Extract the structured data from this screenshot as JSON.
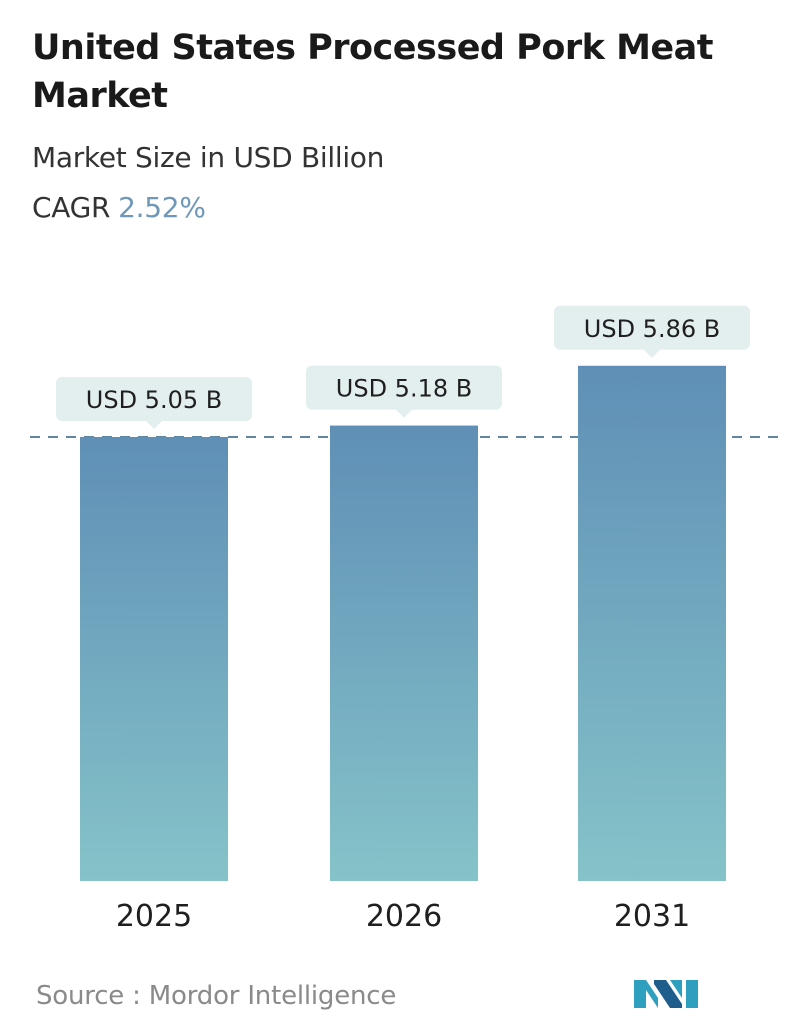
{
  "header": {
    "title": "United States Processed Pork Meat Market",
    "subtitle": "Market Size in USD Billion",
    "cagr_label": "CAGR",
    "cagr_value": "2.52%"
  },
  "chart_data": {
    "type": "bar",
    "title": "United States Processed Pork Meat Market",
    "subtitle": "Market Size in USD Billion",
    "categories": [
      "2025",
      "2026",
      "2031"
    ],
    "values": [
      5.05,
      5.18,
      5.86
    ],
    "value_labels": [
      "USD 5.05 B",
      "USD 5.18 B",
      "USD 5.86 B"
    ],
    "unit": "USD Billion",
    "grid": false,
    "reference_line": 5.05
  },
  "colors": {
    "bar_top": "#5f8fb6",
    "bar_bottom": "#85c3c9",
    "label_bg": "#e3eeef",
    "dashed_line": "#5f87a3",
    "cagr_value": "#6f97b8"
  },
  "footer": {
    "source": "Source :  Mordor Intelligence",
    "logo_icon": "mordor-intelligence-logo-icon"
  }
}
